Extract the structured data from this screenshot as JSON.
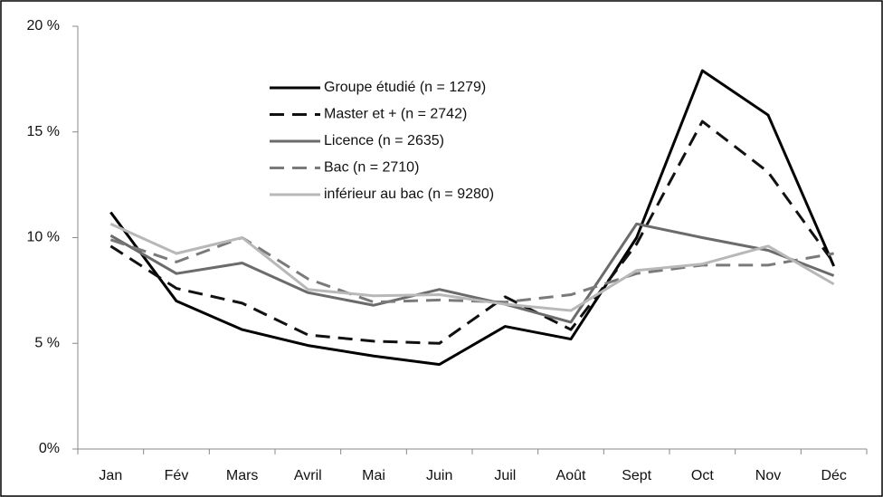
{
  "chart_data": {
    "type": "line",
    "categories": [
      "Jan",
      "Fév",
      "Mars",
      "Avril",
      "Mai",
      "Juin",
      "Juil",
      "Août",
      "Sept",
      "Oct",
      "Nov",
      "Déc"
    ],
    "series": [
      {
        "name": "Groupe étudié (n = 1279)",
        "color": "#000000",
        "dashed": false,
        "values": [
          11.2,
          7.0,
          5.65,
          4.9,
          4.4,
          4.0,
          5.8,
          5.2,
          10.0,
          17.9,
          15.8,
          8.65
        ]
      },
      {
        "name": "Master et + (n = 2742)",
        "color": "#111111",
        "dashed": true,
        "values": [
          9.6,
          7.6,
          6.9,
          5.4,
          5.1,
          5.0,
          7.2,
          5.65,
          9.7,
          15.5,
          13.1,
          8.8
        ]
      },
      {
        "name": "Licence (n = 2635)",
        "color": "#6b6b6b",
        "dashed": false,
        "values": [
          10.1,
          8.3,
          8.8,
          7.4,
          6.8,
          7.55,
          6.85,
          6.0,
          10.65,
          10.0,
          9.4,
          8.2
        ]
      },
      {
        "name": "Bac (n = 2710)",
        "color": "#7a7a7a",
        "dashed": true,
        "values": [
          9.9,
          8.85,
          10.0,
          8.05,
          6.95,
          7.05,
          6.95,
          7.3,
          8.3,
          8.7,
          8.7,
          9.25
        ]
      },
      {
        "name": "inférieur au bac (n = 9280)",
        "color": "#b8b8b8",
        "dashed": false,
        "values": [
          10.65,
          9.25,
          10.0,
          7.55,
          7.25,
          7.3,
          6.85,
          6.55,
          8.45,
          8.75,
          9.6,
          7.8
        ]
      }
    ],
    "ylim": [
      0,
      20
    ],
    "yticks": [
      {
        "value": 0,
        "label": "0%"
      },
      {
        "value": 5,
        "label": "5 %"
      },
      {
        "value": 10,
        "label": "10 %"
      },
      {
        "value": 15,
        "label": "15 %"
      },
      {
        "value": 20,
        "label": "20 %"
      }
    ],
    "grid": false,
    "legend": "top"
  }
}
